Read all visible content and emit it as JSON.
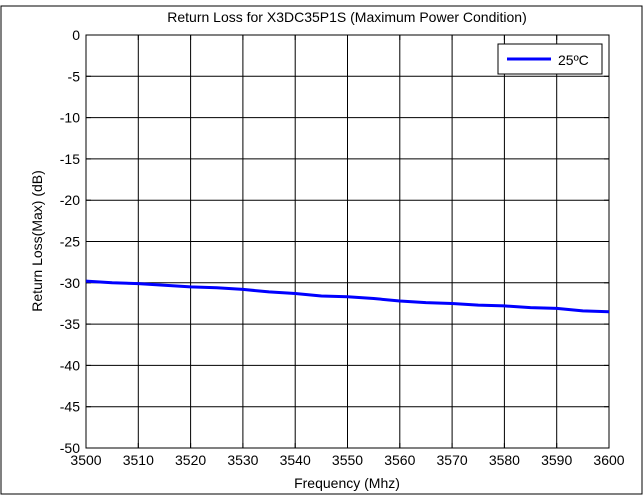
{
  "chart_data": {
    "type": "line",
    "title": "Return Loss for X3DC35P1S (Maximum Power Condition)",
    "xlabel": "Frequency (Mhz)",
    "ylabel": "Return Loss(Max) (dB)",
    "xlim": [
      3500,
      3600
    ],
    "ylim": [
      -50,
      0
    ],
    "xticks": [
      3500,
      3510,
      3520,
      3530,
      3540,
      3550,
      3560,
      3570,
      3580,
      3590,
      3600
    ],
    "yticks": [
      0,
      -5,
      -10,
      -15,
      -20,
      -25,
      -30,
      -35,
      -40,
      -45,
      -50
    ],
    "grid": true,
    "legend_position": "top-right",
    "series": [
      {
        "name": "25ºC",
        "color": "#0000ff",
        "x": [
          3500,
          3505,
          3510,
          3515,
          3520,
          3525,
          3530,
          3535,
          3540,
          3545,
          3550,
          3555,
          3560,
          3565,
          3570,
          3575,
          3580,
          3585,
          3590,
          3595,
          3600
        ],
        "y": [
          -29.8,
          -30.0,
          -30.1,
          -30.3,
          -30.5,
          -30.6,
          -30.8,
          -31.1,
          -31.3,
          -31.6,
          -31.7,
          -31.9,
          -32.2,
          -32.4,
          -32.5,
          -32.7,
          -32.8,
          -33.0,
          -33.1,
          -33.4,
          -33.5
        ]
      }
    ]
  }
}
